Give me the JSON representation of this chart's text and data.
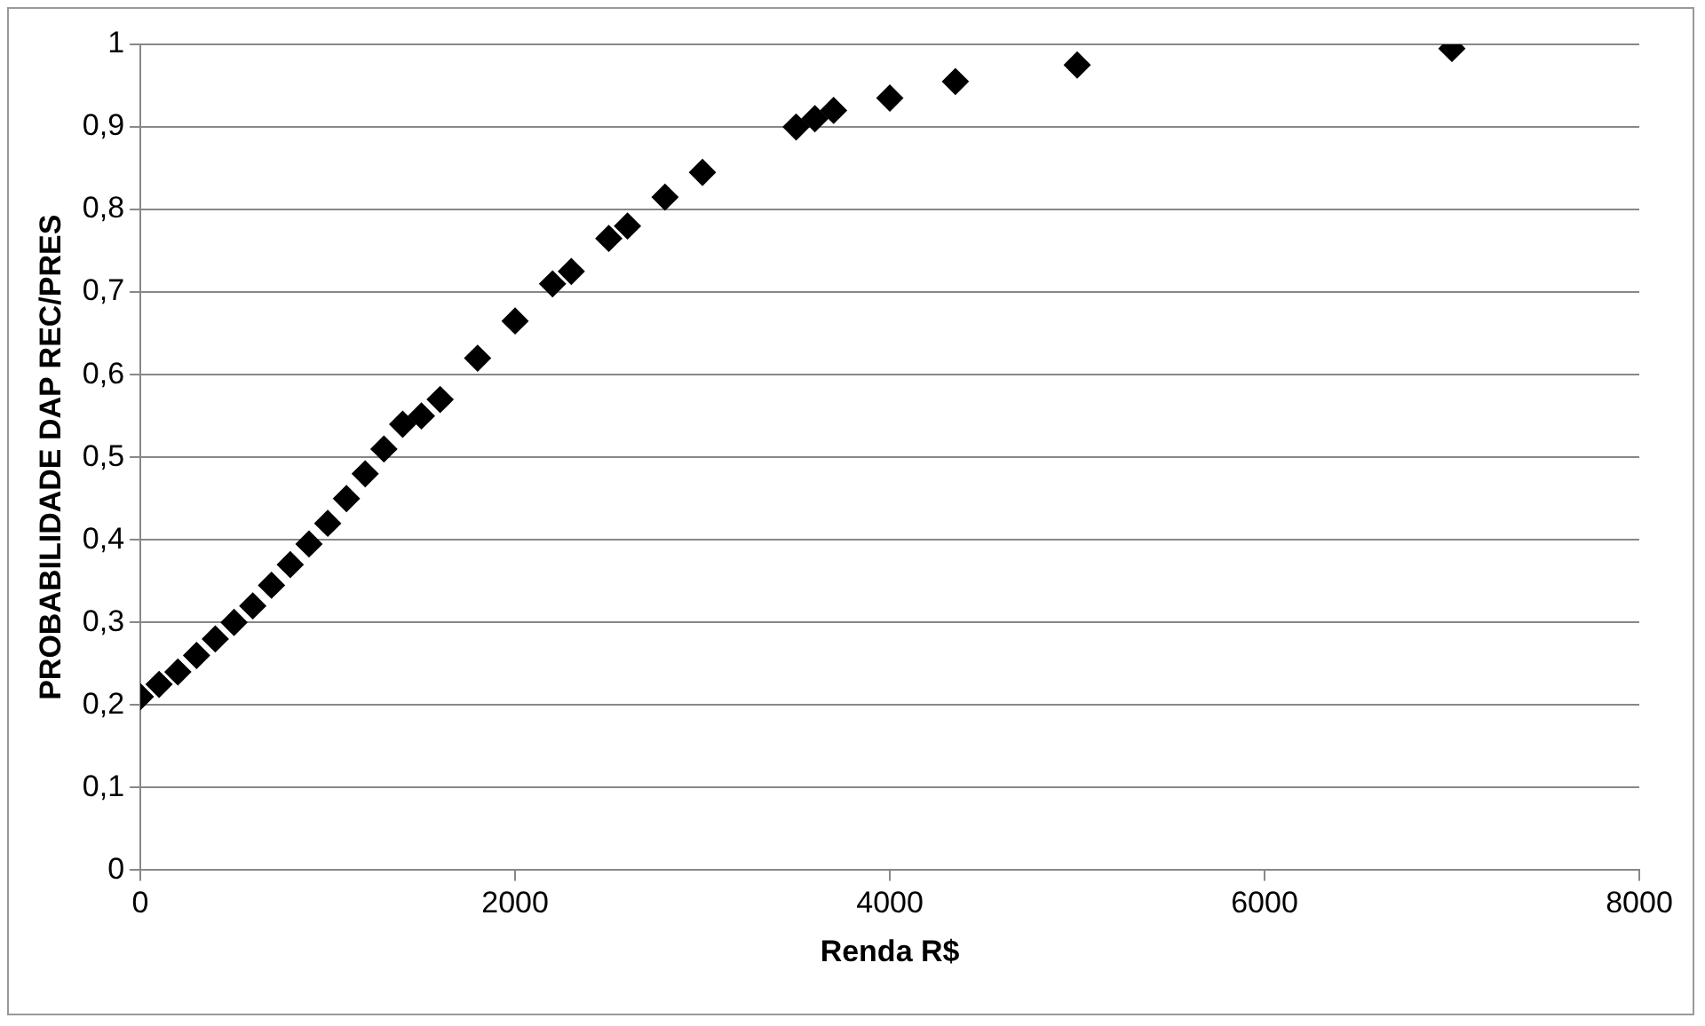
{
  "chart_data": {
    "type": "scatter",
    "xlabel": "Renda R$",
    "ylabel": "PROBABILIDADE DAP REC/PRES",
    "x": [
      0,
      100,
      200,
      300,
      400,
      500,
      600,
      700,
      800,
      900,
      1000,
      1100,
      1200,
      1300,
      1400,
      1500,
      1600,
      1800,
      2000,
      2200,
      2300,
      2500,
      2600,
      2800,
      3000,
      3500,
      3600,
      3700,
      4000,
      4350,
      5000,
      7000
    ],
    "values": [
      0.21,
      0.225,
      0.24,
      0.26,
      0.28,
      0.3,
      0.32,
      0.345,
      0.37,
      0.395,
      0.42,
      0.45,
      0.48,
      0.51,
      0.54,
      0.55,
      0.57,
      0.62,
      0.665,
      0.71,
      0.725,
      0.765,
      0.78,
      0.815,
      0.845,
      0.9,
      0.91,
      0.92,
      0.935,
      0.955,
      0.975,
      0.995
    ],
    "color": "#000000",
    "marker": "diamond",
    "xlim": [
      0,
      8000
    ],
    "xticks": [
      0,
      2000,
      4000,
      6000,
      8000
    ],
    "ylim": [
      0,
      1
    ],
    "yticks": [
      {
        "value": 0,
        "label": "0"
      },
      {
        "value": 0.1,
        "label": "0,1"
      },
      {
        "value": 0.2,
        "label": "0,2"
      },
      {
        "value": 0.3,
        "label": "0,3"
      },
      {
        "value": 0.4,
        "label": "0,4"
      },
      {
        "value": 0.5,
        "label": "0,5"
      },
      {
        "value": 0.6,
        "label": "0,6"
      },
      {
        "value": 0.7,
        "label": "0,7"
      },
      {
        "value": 0.8,
        "label": "0,8"
      },
      {
        "value": 0.9,
        "label": "0,9"
      },
      {
        "value": 1,
        "label": "1"
      }
    ],
    "grid": "y",
    "legend": false
  }
}
